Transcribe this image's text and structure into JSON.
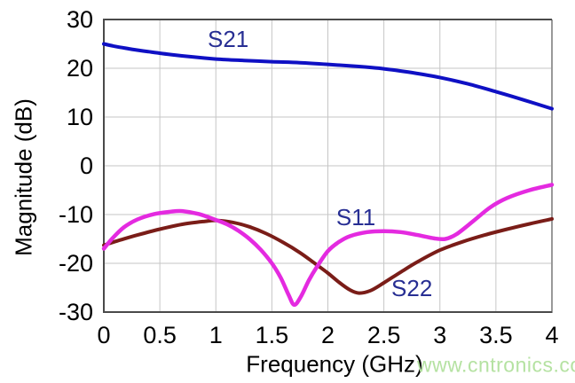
{
  "watermark": {
    "text": "www.cntronics.com",
    "color": "#b5e2a2"
  },
  "chart_data": {
    "type": "line",
    "title": "",
    "xlabel": "Frequency (GHz)",
    "ylabel": "Magnitude (dB)",
    "xlim": [
      0,
      4
    ],
    "ylim": [
      -30,
      30
    ],
    "xticks": [
      0,
      0.5,
      1,
      1.5,
      2,
      2.5,
      3,
      3.5,
      4
    ],
    "xtick_labels": [
      "0",
      "0.5",
      "1",
      "1.5",
      "2",
      "2.5",
      "3",
      "3.5",
      "4"
    ],
    "yticks": [
      30,
      20,
      10,
      0,
      -10,
      -20,
      -30
    ],
    "ytick_labels": [
      "30",
      "20",
      "10",
      "0",
      "-10",
      "-20",
      "-30"
    ],
    "grid": true,
    "legend": "inline-labels",
    "colors": {
      "background": "#ffffff",
      "grid": "#c6c6c6",
      "axis_dark": "#4a4a4a",
      "axis_light": "#999999",
      "tick_text": "#000000",
      "series_label": "#272e93"
    },
    "series": [
      {
        "name": "S21",
        "color": "#0f10c4",
        "width": 4,
        "points": [
          [
            0,
            25.0
          ],
          [
            0.1,
            24.5
          ],
          [
            0.25,
            23.9
          ],
          [
            0.4,
            23.4
          ],
          [
            0.6,
            22.8
          ],
          [
            0.8,
            22.3
          ],
          [
            1.0,
            21.9
          ],
          [
            1.25,
            21.6
          ],
          [
            1.5,
            21.35
          ],
          [
            1.75,
            21.15
          ],
          [
            2.0,
            20.8
          ],
          [
            2.25,
            20.4
          ],
          [
            2.5,
            19.9
          ],
          [
            2.75,
            19.1
          ],
          [
            3.0,
            18.1
          ],
          [
            3.25,
            16.8
          ],
          [
            3.5,
            15.2
          ],
          [
            3.75,
            13.5
          ],
          [
            4.0,
            11.7
          ]
        ]
      },
      {
        "name": "S22",
        "color": "#7a1d18",
        "width": 4,
        "points": [
          [
            0,
            -16.3
          ],
          [
            0.15,
            -15.2
          ],
          [
            0.3,
            -14.2
          ],
          [
            0.5,
            -13.0
          ],
          [
            0.7,
            -12.0
          ],
          [
            0.9,
            -11.4
          ],
          [
            1.0,
            -11.2
          ],
          [
            1.15,
            -11.6
          ],
          [
            1.3,
            -12.5
          ],
          [
            1.45,
            -13.9
          ],
          [
            1.6,
            -15.7
          ],
          [
            1.75,
            -17.8
          ],
          [
            1.9,
            -20.3
          ],
          [
            2.0,
            -22.0
          ],
          [
            2.1,
            -23.9
          ],
          [
            2.2,
            -25.5
          ],
          [
            2.28,
            -26.1
          ],
          [
            2.38,
            -25.6
          ],
          [
            2.5,
            -24.0
          ],
          [
            2.65,
            -21.8
          ],
          [
            2.8,
            -19.7
          ],
          [
            3.0,
            -17.3
          ],
          [
            3.2,
            -15.6
          ],
          [
            3.4,
            -14.2
          ],
          [
            3.6,
            -13.0
          ],
          [
            3.8,
            -11.9
          ],
          [
            4.0,
            -10.9
          ]
        ]
      },
      {
        "name": "S11",
        "color": "#e42ae0",
        "width": 4.5,
        "points": [
          [
            0,
            -17.0
          ],
          [
            0.08,
            -14.8
          ],
          [
            0.18,
            -12.6
          ],
          [
            0.3,
            -11.0
          ],
          [
            0.45,
            -9.9
          ],
          [
            0.6,
            -9.4
          ],
          [
            0.7,
            -9.3
          ],
          [
            0.85,
            -9.9
          ],
          [
            1.0,
            -11.1
          ],
          [
            1.1,
            -12.0
          ],
          [
            1.2,
            -13.3
          ],
          [
            1.3,
            -15.0
          ],
          [
            1.4,
            -17.2
          ],
          [
            1.5,
            -20.0
          ],
          [
            1.58,
            -23.0
          ],
          [
            1.65,
            -26.5
          ],
          [
            1.7,
            -28.5
          ],
          [
            1.76,
            -26.8
          ],
          [
            1.83,
            -23.5
          ],
          [
            1.9,
            -20.8
          ],
          [
            2.0,
            -17.5
          ],
          [
            2.1,
            -15.6
          ],
          [
            2.2,
            -14.4
          ],
          [
            2.35,
            -13.6
          ],
          [
            2.5,
            -13.4
          ],
          [
            2.65,
            -13.6
          ],
          [
            2.8,
            -14.2
          ],
          [
            2.95,
            -14.9
          ],
          [
            3.05,
            -15.0
          ],
          [
            3.15,
            -14.0
          ],
          [
            3.3,
            -11.3
          ],
          [
            3.45,
            -8.5
          ],
          [
            3.6,
            -6.6
          ],
          [
            3.8,
            -5.0
          ],
          [
            4.0,
            -3.9
          ]
        ]
      }
    ],
    "annotations": [
      {
        "text": "S21",
        "x": 1.11,
        "y": 26.0
      },
      {
        "text": "S11",
        "x": 2.25,
        "y": -10.5
      },
      {
        "text": "S22",
        "x": 2.75,
        "y": -25.1
      }
    ]
  }
}
